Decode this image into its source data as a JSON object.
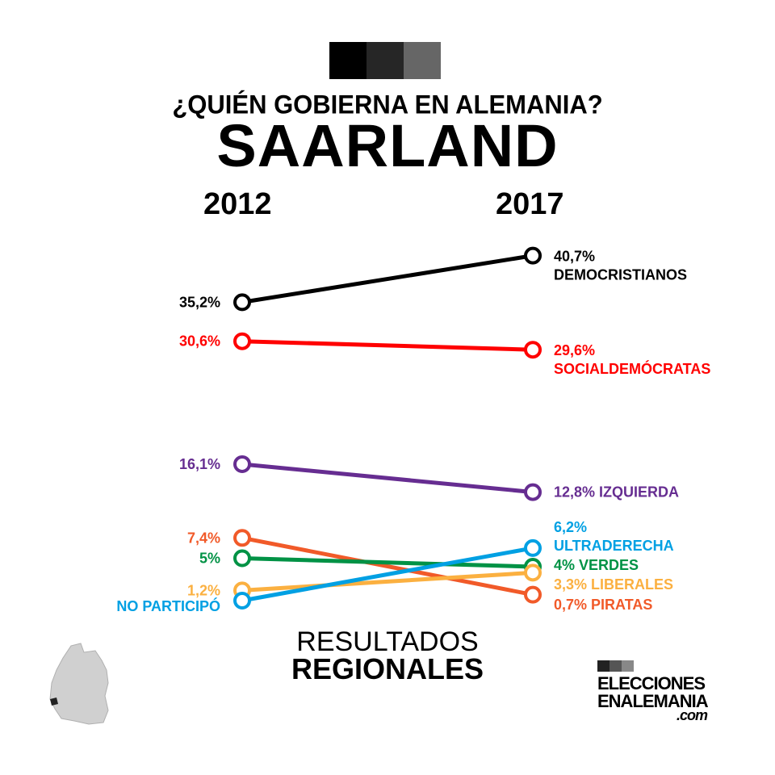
{
  "header": {
    "kicker": "¿QUIÉN GOBIERNA EN ALEMANIA?",
    "title": "SAARLAND"
  },
  "footer": {
    "line1": "RESULTADOS",
    "line2": "REGIONALES"
  },
  "logo": {
    "line1": "ELECCIONES",
    "line2": "ENALEMANIA",
    "line3": ".com"
  },
  "chart_data": {
    "type": "slope",
    "categories": [
      "2012",
      "2017"
    ],
    "series": [
      {
        "name": "DEMOCRISTIANOS",
        "color": "#000000",
        "values": [
          35.2,
          40.7
        ],
        "labels": [
          "35,2%",
          "40,7%"
        ],
        "right_layout": "two-line"
      },
      {
        "name": "SOCIALDEMÓCRATAS",
        "color": "#ff0000",
        "values": [
          30.6,
          29.6
        ],
        "labels": [
          "30,6%",
          "29,6%"
        ],
        "right_layout": "two-line"
      },
      {
        "name": "IZQUIERDA",
        "color": "#662d91",
        "values": [
          16.1,
          12.8
        ],
        "labels": [
          "16,1%",
          "12,8%"
        ],
        "right_layout": "inline"
      },
      {
        "name": "PIRATAS",
        "color": "#f15a29",
        "values": [
          7.4,
          0.7
        ],
        "labels": [
          "7,4%",
          "0,7%"
        ],
        "right_layout": "inline"
      },
      {
        "name": "VERDES",
        "color": "#009245",
        "values": [
          5,
          4
        ],
        "labels": [
          "5%",
          "4%"
        ],
        "right_layout": "inline"
      },
      {
        "name": "LIBERALES",
        "color": "#fbb040",
        "values": [
          1.2,
          3.3
        ],
        "labels": [
          "1,2%",
          "3,3%"
        ],
        "right_layout": "inline"
      },
      {
        "name": "ULTRADERECHA",
        "color": "#00a0e3",
        "values": [
          0,
          6.2
        ],
        "labels": [
          "NO PARTICIPÓ",
          "6,2%"
        ],
        "right_layout": "two-line"
      }
    ],
    "ylim": [
      0,
      41
    ]
  }
}
